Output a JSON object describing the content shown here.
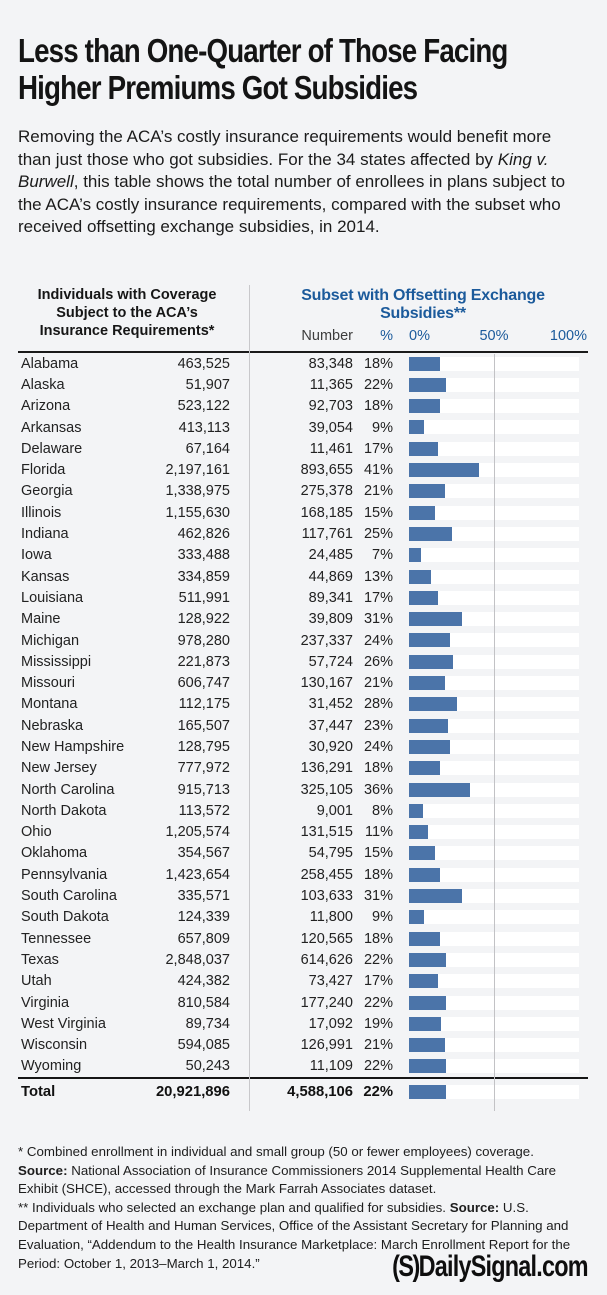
{
  "page": {
    "title_lines": [
      "Less than One-Quarter of Those Facing",
      "Higher Premiums Got Subsidies"
    ],
    "intro": {
      "before": "Removing the ACA’s costly insurance requirements would benefit more than just those who got subsidies. For the 34 states affected by ",
      "italic": "King v. Burwell",
      "after": ", this table shows the total number of enrollees in plans subject to the ACA’s costly insurance requirements, compared with the subset who received offsetting exchange subsidies, in 2014."
    }
  },
  "colors": {
    "accent_blue": "#1b5a9b",
    "bar_blue": "#4b74a9",
    "background": "#f3f4f6",
    "bar_track": "#ffffff"
  },
  "table": {
    "left_header_lines": [
      "Individuals with Coverage",
      "Subject to the ACA’s",
      "Insurance Requirements*"
    ],
    "right_header": "Subset with Offsetting Exchange Subsidies**",
    "col_number_label": "Number",
    "col_pct_label": "%",
    "scale_labels": [
      "0%",
      "50%",
      "100%"
    ],
    "rows": [
      {
        "state": "Alabama",
        "coverage": "463,525",
        "number": "83,348",
        "pct_label": "18%",
        "pct": 18
      },
      {
        "state": "Alaska",
        "coverage": "51,907",
        "number": "11,365",
        "pct_label": "22%",
        "pct": 22
      },
      {
        "state": "Arizona",
        "coverage": "523,122",
        "number": "92,703",
        "pct_label": "18%",
        "pct": 18
      },
      {
        "state": "Arkansas",
        "coverage": "413,113",
        "number": "39,054",
        "pct_label": "9%",
        "pct": 9
      },
      {
        "state": "Delaware",
        "coverage": "67,164",
        "number": "11,461",
        "pct_label": "17%",
        "pct": 17
      },
      {
        "state": "Florida",
        "coverage": "2,197,161",
        "number": "893,655",
        "pct_label": "41%",
        "pct": 41
      },
      {
        "state": "Georgia",
        "coverage": "1,338,975",
        "number": "275,378",
        "pct_label": "21%",
        "pct": 21
      },
      {
        "state": "Illinois",
        "coverage": "1,155,630",
        "number": "168,185",
        "pct_label": "15%",
        "pct": 15
      },
      {
        "state": "Indiana",
        "coverage": "462,826",
        "number": "117,761",
        "pct_label": "25%",
        "pct": 25
      },
      {
        "state": "Iowa",
        "coverage": "333,488",
        "number": "24,485",
        "pct_label": "7%",
        "pct": 7
      },
      {
        "state": "Kansas",
        "coverage": "334,859",
        "number": "44,869",
        "pct_label": "13%",
        "pct": 13
      },
      {
        "state": "Louisiana",
        "coverage": "511,991",
        "number": "89,341",
        "pct_label": "17%",
        "pct": 17
      },
      {
        "state": "Maine",
        "coverage": "128,922",
        "number": "39,809",
        "pct_label": "31%",
        "pct": 31
      },
      {
        "state": "Michigan",
        "coverage": "978,280",
        "number": "237,337",
        "pct_label": "24%",
        "pct": 24
      },
      {
        "state": "Mississippi",
        "coverage": "221,873",
        "number": "57,724",
        "pct_label": "26%",
        "pct": 26
      },
      {
        "state": "Missouri",
        "coverage": "606,747",
        "number": "130,167",
        "pct_label": "21%",
        "pct": 21
      },
      {
        "state": "Montana",
        "coverage": "112,175",
        "number": "31,452",
        "pct_label": "28%",
        "pct": 28
      },
      {
        "state": "Nebraska",
        "coverage": "165,507",
        "number": "37,447",
        "pct_label": "23%",
        "pct": 23
      },
      {
        "state": "New Hampshire",
        "coverage": "128,795",
        "number": "30,920",
        "pct_label": "24%",
        "pct": 24
      },
      {
        "state": "New Jersey",
        "coverage": "777,972",
        "number": "136,291",
        "pct_label": "18%",
        "pct": 18
      },
      {
        "state": "North Carolina",
        "coverage": "915,713",
        "number": "325,105",
        "pct_label": "36%",
        "pct": 36
      },
      {
        "state": "North Dakota",
        "coverage": "113,572",
        "number": "9,001",
        "pct_label": "8%",
        "pct": 8
      },
      {
        "state": "Ohio",
        "coverage": "1,205,574",
        "number": "131,515",
        "pct_label": "11%",
        "pct": 11
      },
      {
        "state": "Oklahoma",
        "coverage": "354,567",
        "number": "54,795",
        "pct_label": "15%",
        "pct": 15
      },
      {
        "state": "Pennsylvania",
        "coverage": "1,423,654",
        "number": "258,455",
        "pct_label": "18%",
        "pct": 18
      },
      {
        "state": "South Carolina",
        "coverage": "335,571",
        "number": "103,633",
        "pct_label": "31%",
        "pct": 31
      },
      {
        "state": "South Dakota",
        "coverage": "124,339",
        "number": "11,800",
        "pct_label": "9%",
        "pct": 9
      },
      {
        "state": "Tennessee",
        "coverage": "657,809",
        "number": "120,565",
        "pct_label": "18%",
        "pct": 18
      },
      {
        "state": "Texas",
        "coverage": "2,848,037",
        "number": "614,626",
        "pct_label": "22%",
        "pct": 22
      },
      {
        "state": "Utah",
        "coverage": "424,382",
        "number": "73,427",
        "pct_label": "17%",
        "pct": 17
      },
      {
        "state": "Virginia",
        "coverage": "810,584",
        "number": "177,240",
        "pct_label": "22%",
        "pct": 22
      },
      {
        "state": "West Virginia",
        "coverage": "89,734",
        "number": "17,092",
        "pct_label": "19%",
        "pct": 19
      },
      {
        "state": "Wisconsin",
        "coverage": "594,085",
        "number": "126,991",
        "pct_label": "21%",
        "pct": 21
      },
      {
        "state": "Wyoming",
        "coverage": "50,243",
        "number": "11,109",
        "pct_label": "22%",
        "pct": 22
      }
    ],
    "total": {
      "state": "Total",
      "coverage": "20,921,896",
      "number": "4,588,106",
      "pct_label": "22%",
      "pct": 22
    }
  },
  "chart_data": {
    "type": "bar",
    "orientation": "horizontal",
    "title": "Less than One-Quarter of Those Facing Higher Premiums Got Subsidies",
    "xlabel": "Subset with offsetting exchange subsidies (%)",
    "xlim": [
      0,
      100
    ],
    "x_ticks": [
      "0%",
      "50%",
      "100%"
    ],
    "grid": "single vertical line at 50%",
    "categories": [
      "Alabama",
      "Alaska",
      "Arizona",
      "Arkansas",
      "Delaware",
      "Florida",
      "Georgia",
      "Illinois",
      "Indiana",
      "Iowa",
      "Kansas",
      "Louisiana",
      "Maine",
      "Michigan",
      "Mississippi",
      "Missouri",
      "Montana",
      "Nebraska",
      "New Hampshire",
      "New Jersey",
      "North Carolina",
      "North Dakota",
      "Ohio",
      "Oklahoma",
      "Pennsylvania",
      "South Carolina",
      "South Dakota",
      "Tennessee",
      "Texas",
      "Utah",
      "Virginia",
      "West Virginia",
      "Wisconsin",
      "Wyoming"
    ],
    "series": [
      {
        "name": "Individuals with Coverage Subject to the ACA’s Insurance Requirements",
        "values": [
          463525,
          51907,
          523122,
          413113,
          67164,
          2197161,
          1338975,
          1155630,
          462826,
          333488,
          334859,
          511991,
          128922,
          978280,
          221873,
          606747,
          112175,
          165507,
          128795,
          777972,
          915713,
          113572,
          1205574,
          354567,
          1423654,
          335571,
          124339,
          657809,
          2848037,
          424382,
          810584,
          89734,
          594085,
          50243
        ]
      },
      {
        "name": "Subset with Offsetting Exchange Subsidies (Number)",
        "values": [
          83348,
          11365,
          92703,
          39054,
          11461,
          893655,
          275378,
          168185,
          117761,
          24485,
          44869,
          89341,
          39809,
          237337,
          57724,
          130167,
          31452,
          37447,
          30920,
          136291,
          325105,
          9001,
          131515,
          54795,
          258455,
          103633,
          11800,
          120565,
          614626,
          73427,
          177240,
          17092,
          126991,
          11109
        ]
      },
      {
        "name": "Subset with Offsetting Exchange Subsidies (%) — plotted as bars",
        "values": [
          18,
          22,
          18,
          9,
          17,
          41,
          21,
          15,
          25,
          7,
          13,
          17,
          31,
          24,
          26,
          21,
          28,
          23,
          24,
          18,
          36,
          8,
          11,
          15,
          18,
          31,
          9,
          18,
          22,
          17,
          22,
          19,
          21,
          22
        ]
      }
    ],
    "totals": {
      "coverage": 20921896,
      "subsidy_number": 4588106,
      "subsidy_pct": 22
    },
    "legend_position": "none"
  },
  "footnotes": {
    "fn1_a": "* Combined enrollment in individual and small group (50 or fewer employees) coverage. ",
    "fn1_src": "Source:",
    "fn1_b": " National Association of Insurance Commissioners 2014 Supplemental Health Care Exhibit (SHCE), accessed through the Mark Farrah Associates dataset.",
    "fn2_a": "** Individuals who selected an exchange plan and qualified for subsidies. ",
    "fn2_src": "Source:",
    "fn2_b": " U.S. Department of Health and Human Services, Office of the Assistant Secretary for Planning and Evaluation, “Addendum to the Health Insurance Marketplace: March Enrollment Report for the Period: October 1, 2013–March 1, 2014.”"
  },
  "logo": {
    "mark": "(S)",
    "name": "DailySignal.com"
  }
}
